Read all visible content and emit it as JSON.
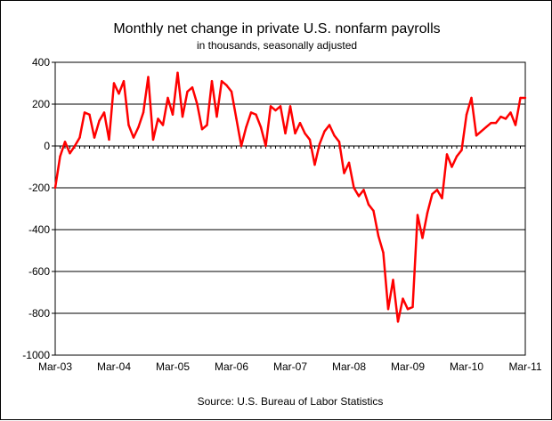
{
  "chart_data": {
    "type": "line",
    "title": "Monthly net change in private U.S. nonfarm payrolls",
    "subtitle": "in thousands, seasonally adjusted",
    "source": "Source: U.S. Bureau of Labor Statistics",
    "xlabel": "",
    "ylabel": "",
    "ylim": [
      -1000,
      400
    ],
    "y_ticks": [
      400,
      200,
      0,
      -200,
      -400,
      -600,
      -800,
      -1000
    ],
    "y_tick_labels": [
      "400",
      "200",
      "0",
      "-200",
      "-400",
      "-600",
      "-800",
      "-1000"
    ],
    "x_tick_labels": [
      "Mar-03",
      "Mar-04",
      "Mar-05",
      "Mar-06",
      "Mar-07",
      "Mar-08",
      "Mar-09",
      "Mar-10",
      "Mar-11"
    ],
    "grid": "horizontal",
    "legend": "none",
    "line_color": "#ff0000",
    "series": [
      {
        "values": [
          -200,
          -50,
          20,
          -35,
          0,
          40,
          160,
          150,
          40,
          120,
          160,
          30,
          300,
          250,
          310,
          100,
          40,
          90,
          160,
          330,
          30,
          130,
          100,
          230,
          150,
          350,
          140,
          260,
          280,
          200,
          80,
          100,
          310,
          140,
          310,
          290,
          260,
          130,
          0,
          90,
          160,
          150,
          90,
          0,
          190,
          170,
          190,
          60,
          190,
          60,
          110,
          60,
          30,
          -90,
          10,
          70,
          100,
          50,
          20,
          -130,
          -80,
          -200,
          -240,
          -210,
          -280,
          -310,
          -430,
          -510,
          -780,
          -640,
          -840,
          -730,
          -780,
          -770,
          -330,
          -440,
          -320,
          -230,
          -210,
          -250,
          -40,
          -100,
          -50,
          -20,
          150,
          230,
          50,
          70,
          90,
          110,
          110,
          140,
          130,
          160,
          100,
          230,
          230
        ]
      }
    ]
  }
}
